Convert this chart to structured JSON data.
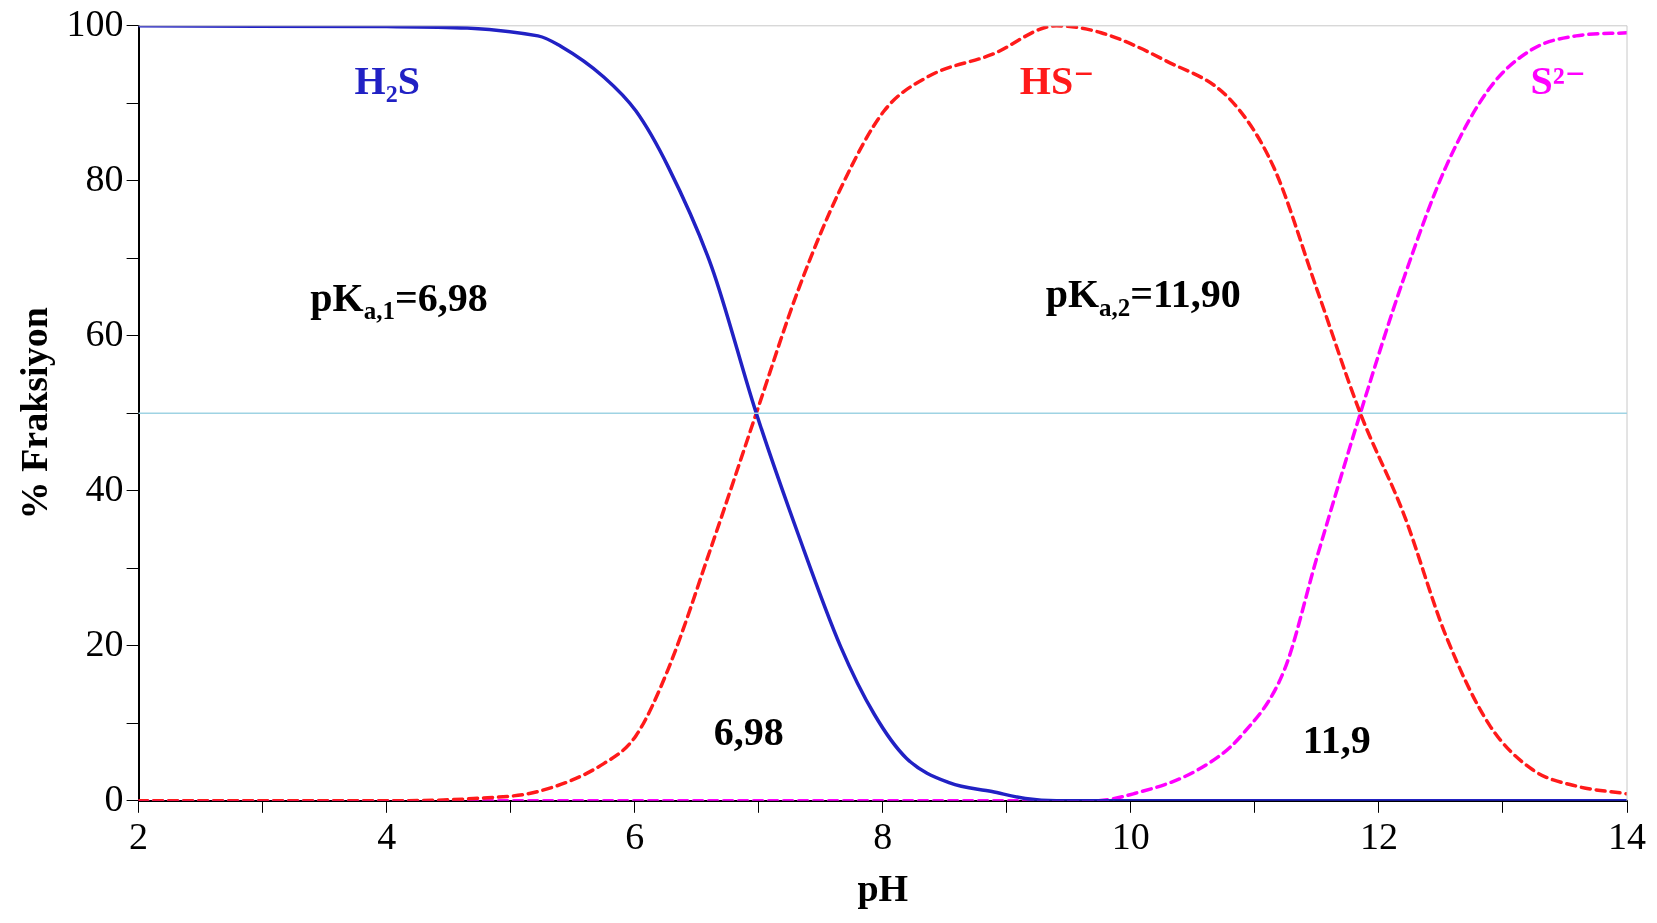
{
  "chart_data": {
    "type": "line",
    "xlabel": "pH",
    "ylabel": "% Fraksiyon",
    "xlim": [
      2,
      14
    ],
    "xticks": [
      2,
      {
        "value": 3,
        "label": null
      },
      4,
      {
        "value": 5,
        "label": null
      },
      6,
      {
        "value": 7,
        "label": null
      },
      8,
      {
        "value": 9,
        "label": null
      },
      10,
      {
        "value": 11,
        "label": null
      },
      12,
      {
        "value": 13,
        "label": null
      },
      14
    ],
    "ylim": [
      0,
      100
    ],
    "yticks": [
      0,
      {
        "value": 10,
        "label": null
      },
      20,
      {
        "value": 30,
        "label": null
      },
      40,
      {
        "value": 50,
        "label": null
      },
      60,
      {
        "value": 70,
        "label": null
      },
      80,
      {
        "value": 90,
        "label": null
      },
      100
    ],
    "grid": false,
    "legend": false,
    "marker": "none",
    "series": [
      {
        "name": "H₂S",
        "color": "#2121c4",
        "line_style": "solid",
        "x": [
          2,
          4,
          5.22,
          5.4,
          5.75,
          6.01,
          6.27,
          6.62,
          6.98,
          7.32,
          7.66,
          7.93,
          8.19,
          8.54,
          8.88,
          9.15,
          9.4,
          14
        ],
        "values": [
          100,
          99.9,
          98.7,
          97.4,
          93.4,
          89,
          81.8,
          68.9,
          50,
          34.3,
          19.9,
          11.2,
          5.5,
          2.3,
          1.2,
          0.3,
          0,
          0
        ]
      },
      {
        "name": "HS⁻",
        "color": "#ff1a1a",
        "line_style": "dashed",
        "x": [
          2,
          4,
          4.7,
          5.22,
          5.75,
          6.01,
          6.27,
          6.62,
          6.98,
          7.32,
          7.66,
          8.01,
          8.36,
          8.88,
          9.4,
          9.76,
          10.28,
          10.8,
          11.15,
          11.5,
          11.85,
          12.2,
          12.54,
          12.89,
          13.24,
          13.59,
          14
        ],
        "values": [
          0,
          0,
          0.3,
          1.2,
          4.8,
          8.4,
          17,
          32.9,
          50,
          66,
          79,
          89,
          93.4,
          96.3,
          100,
          99.1,
          95.5,
          90.5,
          81.8,
          66,
          50,
          37,
          21.3,
          9.8,
          4,
          1.9,
          0.9
        ]
      },
      {
        "name": "S²⁻",
        "color": "#ff00ff",
        "line_style": "dashed",
        "x": [
          2,
          9.7,
          10.02,
          10.54,
          10.89,
          11.24,
          11.5,
          11.85,
          12.2,
          12.54,
          12.89,
          13.24,
          13.59,
          14
        ],
        "values": [
          0,
          0,
          0.9,
          4,
          8.4,
          17,
          31.4,
          50,
          67.4,
          81.8,
          91.9,
          97,
          98.7,
          99.1
        ]
      }
    ],
    "ref_lines": [
      {
        "axis": "y",
        "value": 50,
        "color": "#9fd3e3"
      }
    ],
    "annotations": [
      "pK$_{a,1}$=6,98",
      "pK$_{a,2}$=11,90",
      "6,98",
      "11,9"
    ]
  }
}
